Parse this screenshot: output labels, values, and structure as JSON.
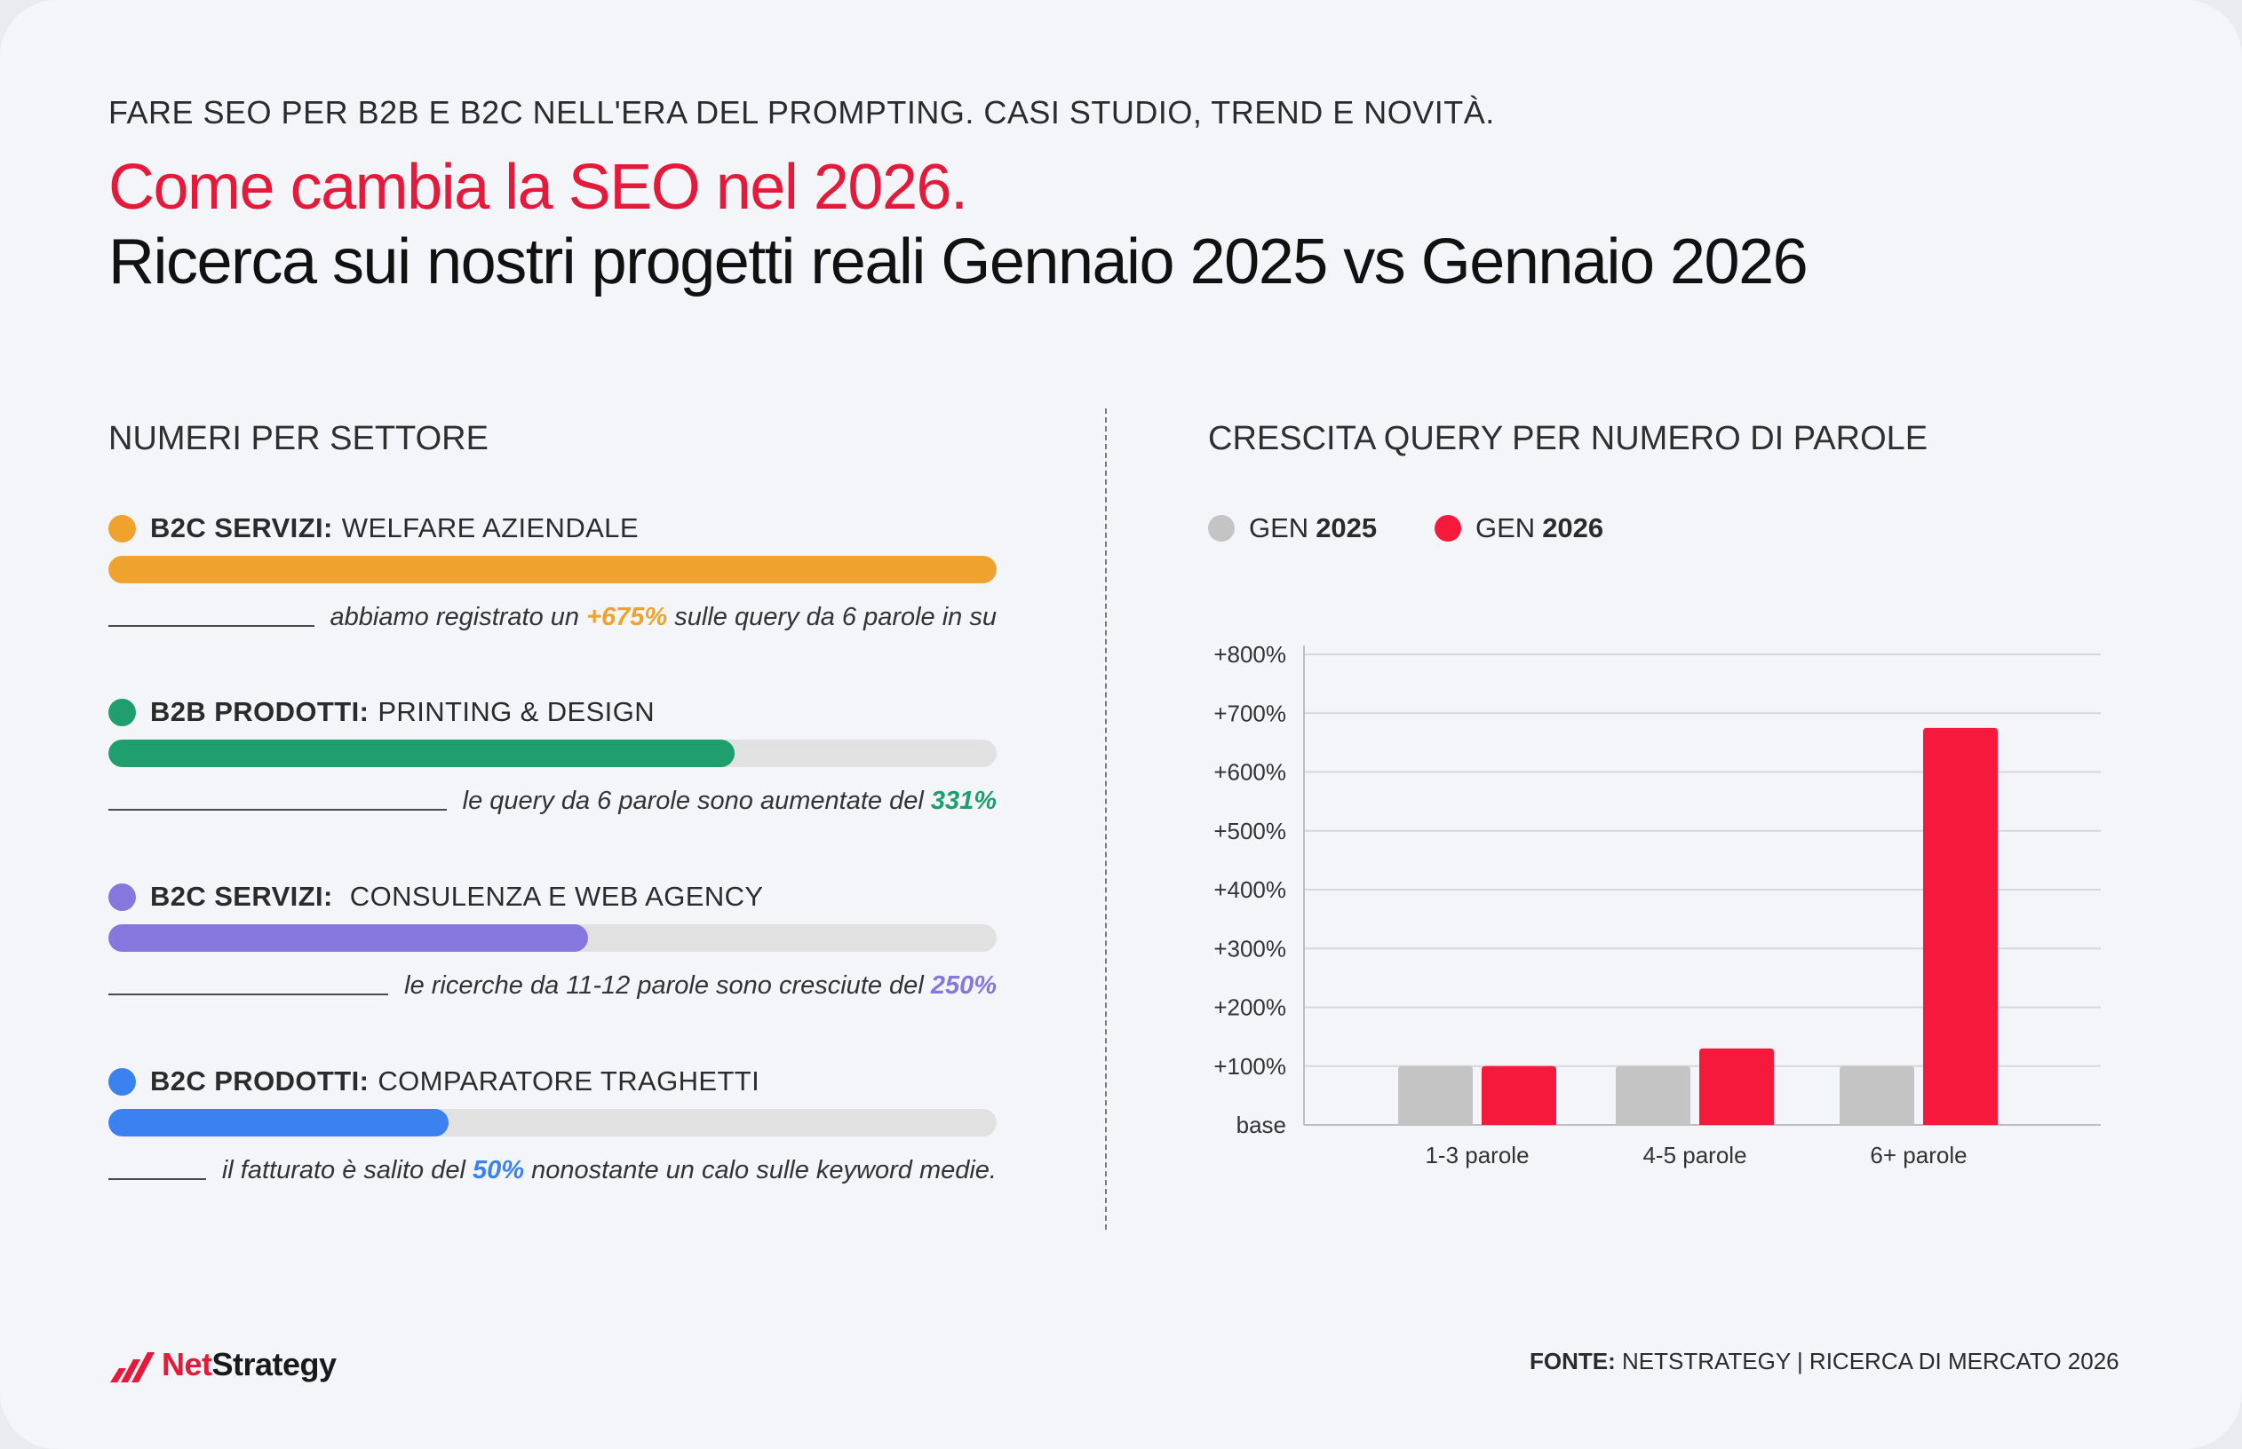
{
  "header": {
    "kicker": "FARE SEO PER B2B E B2C NELL'ERA DEL PROMPTING. CASI STUDIO, TREND E NOVITÀ.",
    "title_red": "Come cambia la SEO nel 2026.",
    "title_black": "Ricerca sui nostri progetti reali Gennaio 2025 vs Gennaio 2026"
  },
  "left_section": {
    "heading": "NUMERI PER SETTORE",
    "sectors": [
      {
        "category": "B2C SERVIZI:",
        "name": "WELFARE AZIENDALE",
        "color": "#f0a22e",
        "progress_fraction": 1.0,
        "note_before": "abbiamo registrato un",
        "note_value": "+675%",
        "note_after": "sulle query da 6 parole in su"
      },
      {
        "category": "B2B PRODOTTI:",
        "name": "PRINTING & DESIGN",
        "color": "#1f9e6e",
        "progress_fraction": 0.705,
        "note_before": "le query da 6 parole sono aumentate del",
        "note_value": "331%",
        "note_after": ""
      },
      {
        "category": "B2C SERVIZI:",
        "name": " CONSULENZA E WEB AGENCY",
        "color": "#8577dd",
        "progress_fraction": 0.54,
        "note_before": "le ricerche da 11-12 parole sono cresciute del",
        "note_value": "250%",
        "note_after": ""
      },
      {
        "category": "B2C PRODOTTI:",
        "name": "COMPARATORE TRAGHETTI",
        "color": "#3b82f0",
        "progress_fraction": 0.383,
        "note_before": "il fatturato è salito del",
        "note_value": "50%",
        "note_after": "nonostante un calo sulle keyword medie."
      }
    ]
  },
  "right_section": {
    "heading": "CRESCITA QUERY PER NUMERO DI PAROLE",
    "legend": [
      {
        "prefix": "GEN",
        "year": "2025",
        "color": "#c4c4c4"
      },
      {
        "prefix": "GEN",
        "year": "2026",
        "color": "#f5193b"
      }
    ]
  },
  "chart_data": {
    "type": "bar",
    "categories": [
      "1-3 parole",
      "4-5 parole",
      "6+ parole"
    ],
    "series": [
      {
        "name": "GEN 2025",
        "values": [
          100,
          100,
          100
        ],
        "color": "#c4c4c4"
      },
      {
        "name": "GEN 2026",
        "values": [
          100,
          130,
          675
        ],
        "color": "#f5193b"
      }
    ],
    "y_ticks": [
      {
        "value": 0,
        "label": "base"
      },
      {
        "value": 100,
        "label": "+100%"
      },
      {
        "value": 200,
        "label": "+200%"
      },
      {
        "value": 300,
        "label": "+300%"
      },
      {
        "value": 400,
        "label": "+400%"
      },
      {
        "value": 500,
        "label": "+500%"
      },
      {
        "value": 600,
        "label": "+600%"
      },
      {
        "value": 700,
        "label": "+700%"
      },
      {
        "value": 800,
        "label": "+800%"
      }
    ],
    "ylim": [
      0,
      800
    ],
    "grid": true,
    "legend_position": "top-left"
  },
  "footer": {
    "logo_text_a": "Net",
    "logo_text_b": "Strategy",
    "source_label": "FONTE:",
    "source_text": "NETSTRATEGY | RICERCA DI MERCATO 2026"
  }
}
